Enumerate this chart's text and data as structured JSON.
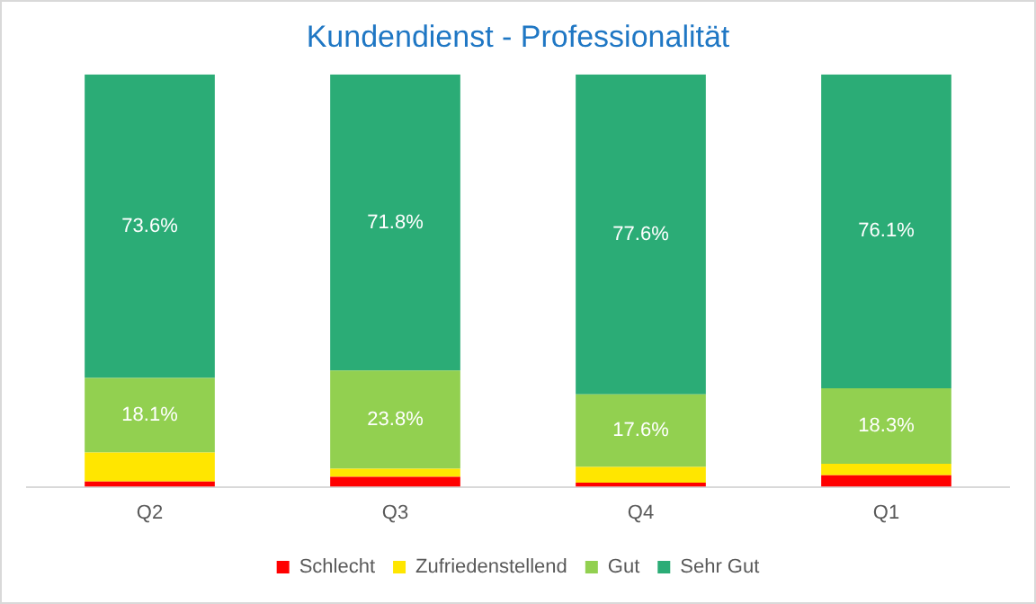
{
  "chart_data": {
    "type": "bar",
    "title": "Kundendienst - Professionalität",
    "categories": [
      "Q2",
      "Q3",
      "Q4",
      "Q1"
    ],
    "stacked": true,
    "tick_labels": "x",
    "grid": false,
    "legend": "bottom",
    "series": [
      {
        "name": "Schlecht",
        "color": "#ff0000",
        "values": [
          1.3,
          2.4,
          1.0,
          2.8
        ],
        "value_labels": [
          null,
          null,
          null,
          null
        ]
      },
      {
        "name": "Zufriedenstellend",
        "color": "#ffe600",
        "values": [
          7.0,
          2.0,
          3.8,
          2.8
        ],
        "value_labels": [
          null,
          null,
          null,
          null
        ]
      },
      {
        "name": "Gut",
        "color": "#92d050",
        "values": [
          18.1,
          23.8,
          17.6,
          18.3
        ],
        "value_labels": [
          "18.1%",
          "23.8%",
          "17.6%",
          "18.3%"
        ]
      },
      {
        "name": "Sehr Gut",
        "color": "#2bac76",
        "values": [
          73.6,
          71.8,
          77.6,
          76.1
        ],
        "value_labels": [
          "73.6%",
          "71.8%",
          "77.6%",
          "76.1%"
        ]
      }
    ]
  }
}
